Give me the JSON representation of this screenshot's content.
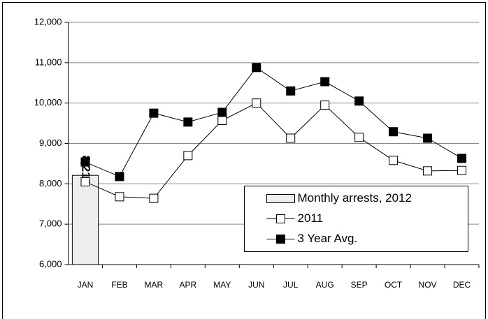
{
  "chart_data": {
    "type": "combo",
    "categories": [
      "JAN",
      "FEB",
      "MAR",
      "APR",
      "MAY",
      "JUN",
      "JUL",
      "AUG",
      "SEP",
      "OCT",
      "NOV",
      "DEC"
    ],
    "series": [
      {
        "name": "Monthly arrests, 2012",
        "type": "bar",
        "color": "#eeeeee",
        "values": [
          8210,
          null,
          null,
          null,
          null,
          null,
          null,
          null,
          null,
          null,
          null,
          null
        ],
        "value_labels": [
          "8,210",
          null,
          null,
          null,
          null,
          null,
          null,
          null,
          null,
          null,
          null,
          null
        ]
      },
      {
        "name": "2011",
        "type": "line",
        "color": "#ffffff",
        "values": [
          8050,
          7680,
          7640,
          8700,
          9570,
          10000,
          9130,
          9950,
          9150,
          8580,
          8320,
          8330
        ]
      },
      {
        "name": "3 Year Avg.",
        "type": "line",
        "color": "#000000",
        "values": [
          8540,
          8180,
          9750,
          9530,
          9770,
          10880,
          10300,
          10530,
          10050,
          9290,
          9130,
          8630
        ]
      }
    ],
    "ylim": [
      6000,
      12000
    ],
    "yticks": [
      {
        "value": 6000,
        "label": "6,000"
      },
      {
        "value": 7000,
        "label": "7,000"
      },
      {
        "value": 8000,
        "label": "8,000"
      },
      {
        "value": 9000,
        "label": "9,000"
      },
      {
        "value": 10000,
        "label": "10,000"
      },
      {
        "value": 11000,
        "label": "11,000"
      },
      {
        "value": 12000,
        "label": "12,000"
      }
    ],
    "grid": true,
    "legend": "lower right"
  }
}
